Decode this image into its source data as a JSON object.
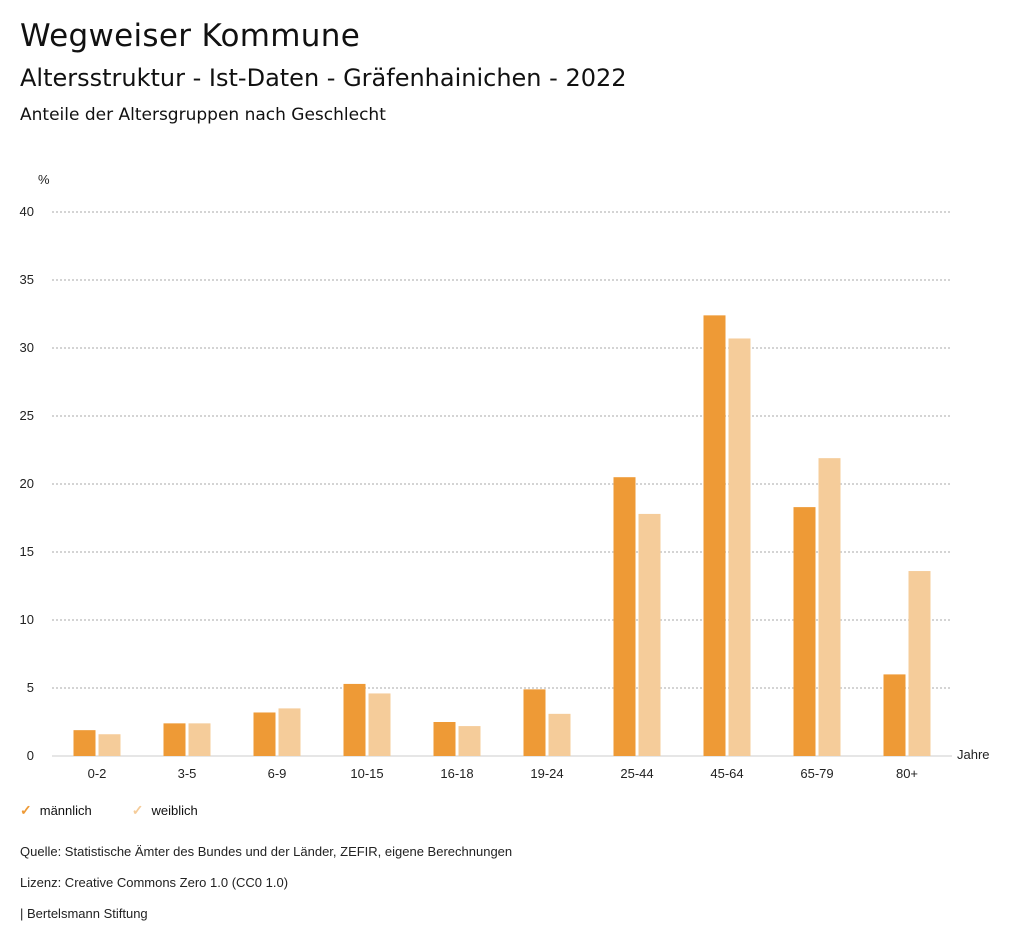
{
  "header": {
    "title": "Wegweiser Kommune",
    "subtitle": "Altersstruktur - Ist-Daten - Gräfenhainichen - 2022",
    "subsubtitle": "Anteile der Altersgruppen nach Geschlecht"
  },
  "chart_data": {
    "type": "bar",
    "ylabel": "%",
    "xlabel": "Jahre",
    "ylim": [
      0,
      40
    ],
    "yticks": [
      0,
      5,
      10,
      15,
      20,
      25,
      30,
      35,
      40
    ],
    "grid": true,
    "categories": [
      "0-2",
      "3-5",
      "6-9",
      "10-15",
      "16-18",
      "19-24",
      "25-44",
      "45-64",
      "65-79",
      "80+"
    ],
    "series": [
      {
        "name": "männlich",
        "color": "#ee9a36",
        "values": [
          1.9,
          2.4,
          3.2,
          5.3,
          2.5,
          4.9,
          20.5,
          32.4,
          18.3,
          6.0
        ]
      },
      {
        "name": "weiblich",
        "color": "#f5cc9a",
        "values": [
          1.6,
          2.4,
          3.5,
          4.6,
          2.2,
          3.1,
          17.8,
          30.7,
          21.9,
          13.6
        ]
      }
    ],
    "legend_position": "bottom-left"
  },
  "footer": {
    "source": "Quelle: Statistische Ämter des Bundes und der Länder, ZEFIR, eigene Berechnungen",
    "license": "Lizenz: Creative Commons Zero 1.0 (CC0 1.0)",
    "publisher": "| Bertelsmann Stiftung"
  }
}
